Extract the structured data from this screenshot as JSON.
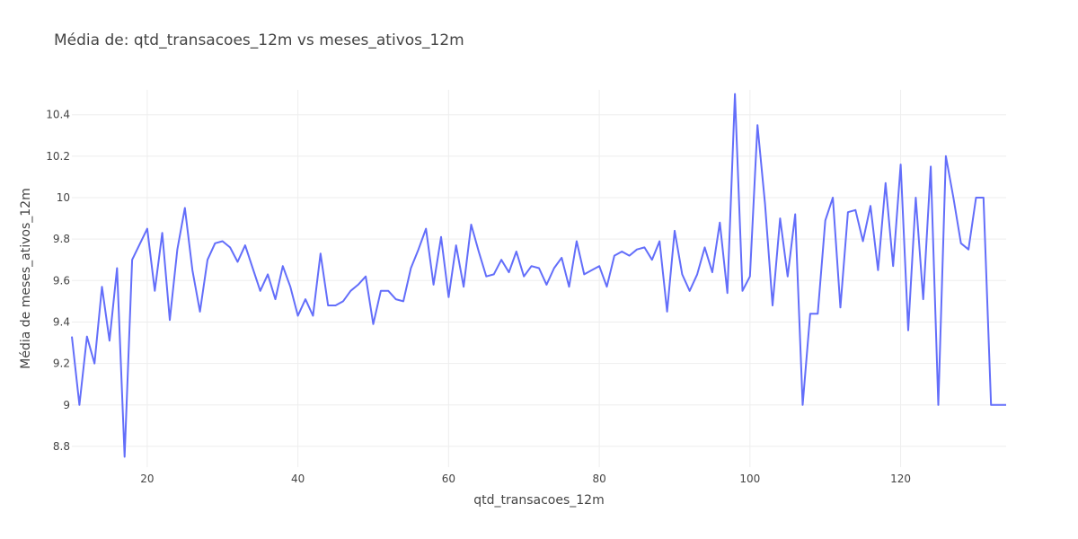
{
  "chart_data": {
    "type": "line",
    "title": "Média de: qtd_transacoes_12m vs meses_ativos_12m",
    "xlabel": "qtd_transacoes_12m",
    "ylabel": "Média de meses_ativos_12m",
    "xlim": [
      10,
      134
    ],
    "ylim": [
      8.7,
      10.52
    ],
    "xticks": [
      20,
      40,
      60,
      80,
      100,
      120
    ],
    "xtick_labels": [
      "20",
      "40",
      "60",
      "80",
      "100",
      "120"
    ],
    "yticks": [
      8.8,
      9.0,
      9.2,
      9.4,
      9.6,
      9.8,
      10.0,
      10.2,
      10.4
    ],
    "ytick_labels": [
      "8.8",
      "9",
      "9.2",
      "9.4",
      "9.6",
      "9.8",
      "10",
      "10.2",
      "10.4"
    ],
    "grid": true,
    "series": [
      {
        "name": "",
        "color": "#636efa",
        "x": [
          10,
          11,
          12,
          13,
          14,
          15,
          16,
          17,
          18,
          20,
          21,
          22,
          23,
          24,
          25,
          26,
          27,
          28,
          29,
          30,
          31,
          32,
          33,
          34,
          35,
          36,
          37,
          38,
          39,
          40,
          41,
          42,
          43,
          44,
          45,
          46,
          47,
          48,
          49,
          50,
          51,
          52,
          53,
          54,
          55,
          56,
          57,
          58,
          59,
          60,
          61,
          62,
          63,
          64,
          65,
          66,
          67,
          68,
          69,
          70,
          71,
          72,
          73,
          74,
          75,
          76,
          77,
          78,
          79,
          80,
          81,
          82,
          83,
          84,
          85,
          86,
          87,
          88,
          89,
          90,
          91,
          92,
          93,
          94,
          95,
          96,
          97,
          98,
          99,
          100,
          101,
          102,
          103,
          104,
          105,
          106,
          107,
          108,
          109,
          110,
          111,
          112,
          113,
          114,
          115,
          116,
          117,
          118,
          119,
          120,
          121,
          122,
          123,
          124,
          125,
          126,
          127,
          128,
          129,
          130,
          131,
          132,
          133,
          134
        ],
        "values": [
          9.33,
          9.0,
          9.33,
          9.2,
          9.57,
          9.31,
          9.66,
          8.75,
          9.7,
          9.85,
          9.55,
          9.83,
          9.41,
          9.75,
          9.95,
          9.65,
          9.45,
          9.7,
          9.78,
          9.79,
          9.76,
          9.69,
          9.77,
          9.66,
          9.55,
          9.63,
          9.51,
          9.67,
          9.57,
          9.43,
          9.51,
          9.43,
          9.73,
          9.48,
          9.48,
          9.5,
          9.55,
          9.58,
          9.62,
          9.39,
          9.55,
          9.55,
          9.51,
          9.5,
          9.66,
          9.75,
          9.85,
          9.58,
          9.81,
          9.52,
          9.77,
          9.57,
          9.87,
          9.74,
          9.62,
          9.63,
          9.7,
          9.64,
          9.74,
          9.62,
          9.67,
          9.66,
          9.58,
          9.66,
          9.71,
          9.57,
          9.79,
          9.63,
          9.65,
          9.67,
          9.57,
          9.72,
          9.74,
          9.72,
          9.75,
          9.76,
          9.7,
          9.79,
          9.45,
          9.84,
          9.63,
          9.55,
          9.63,
          9.76,
          9.64,
          9.88,
          9.54,
          10.5,
          9.55,
          9.62,
          10.35,
          9.97,
          9.48,
          9.9,
          9.62,
          9.92,
          9.0,
          9.44,
          9.44,
          9.89,
          10.0,
          9.47,
          9.93,
          9.94,
          9.79,
          9.96,
          9.65,
          10.07,
          9.67,
          10.16,
          9.36,
          10.0,
          9.51,
          10.15,
          9.0,
          10.2,
          10.0,
          9.78,
          9.75,
          10.0,
          10.0,
          9.0,
          9.0,
          9.0
        ]
      }
    ]
  }
}
